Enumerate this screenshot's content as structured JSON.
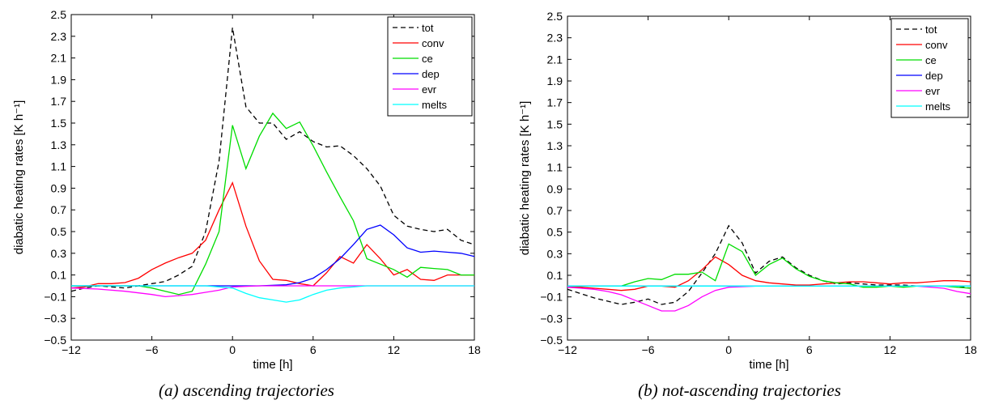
{
  "colors": {
    "tot": "#000000",
    "conv": "#ff0000",
    "ce": "#00dd00",
    "dep": "#0000ff",
    "evr": "#ff00ff",
    "melts": "#00ffff"
  },
  "chart_data": [
    {
      "type": "line",
      "caption": "(a) ascending trajectories",
      "xlabel": "time [h]",
      "ylabel": "diabatic heating rates [K h⁻¹]",
      "xlim": [
        -12,
        18
      ],
      "ylim": [
        -0.5,
        2.5
      ],
      "xticks": [
        -12,
        -6,
        0,
        6,
        12,
        18
      ],
      "yticks": [
        -0.5,
        -0.3,
        -0.1,
        0.1,
        0.3,
        0.5,
        0.7,
        0.9,
        1.1,
        1.3,
        1.5,
        1.7,
        1.9,
        2.1,
        2.3,
        2.5
      ],
      "grid": false,
      "legend_position": "top-right",
      "series": [
        {
          "name": "tot",
          "dash": true,
          "x": [
            -12,
            -11,
            -10,
            -9,
            -8,
            -7,
            -6,
            -5,
            -4,
            -3,
            -2,
            -1,
            0,
            1,
            2,
            3,
            4,
            5,
            6,
            7,
            8,
            9,
            10,
            11,
            12,
            13,
            14,
            15,
            16,
            17,
            18
          ],
          "y": [
            -0.05,
            -0.02,
            0.0,
            -0.01,
            -0.02,
            0.0,
            0.02,
            0.04,
            0.1,
            0.18,
            0.5,
            1.15,
            2.38,
            1.65,
            1.5,
            1.5,
            1.35,
            1.42,
            1.33,
            1.28,
            1.29,
            1.2,
            1.08,
            0.92,
            0.65,
            0.55,
            0.52,
            0.5,
            0.52,
            0.42,
            0.38
          ]
        },
        {
          "name": "conv",
          "x": [
            -12,
            -11,
            -10,
            -9,
            -8,
            -7,
            -6,
            -5,
            -4,
            -3,
            -2,
            -1,
            0,
            1,
            2,
            3,
            4,
            5,
            6,
            7,
            8,
            9,
            10,
            11,
            12,
            13,
            14,
            15,
            16,
            17,
            18
          ],
          "y": [
            -0.02,
            -0.01,
            0.02,
            0.02,
            0.03,
            0.07,
            0.15,
            0.21,
            0.26,
            0.3,
            0.42,
            0.7,
            0.95,
            0.55,
            0.23,
            0.06,
            0.05,
            0.02,
            0.0,
            0.12,
            0.27,
            0.21,
            0.38,
            0.25,
            0.1,
            0.15,
            0.06,
            0.05,
            0.1,
            0.1,
            0.1
          ]
        },
        {
          "name": "ce",
          "x": [
            -12,
            -11,
            -10,
            -9,
            -8,
            -7,
            -6,
            -5,
            -4,
            -3,
            -2,
            -1,
            0,
            1,
            2,
            3,
            4,
            5,
            6,
            7,
            8,
            9,
            10,
            11,
            12,
            13,
            14,
            15,
            16,
            17,
            18
          ],
          "y": [
            0.0,
            0.0,
            0.0,
            0.0,
            0.0,
            0.0,
            -0.02,
            -0.05,
            -0.08,
            -0.05,
            0.2,
            0.5,
            1.48,
            1.08,
            1.38,
            1.59,
            1.45,
            1.51,
            1.29,
            1.05,
            0.82,
            0.6,
            0.25,
            0.2,
            0.15,
            0.08,
            0.17,
            0.16,
            0.15,
            0.1,
            0.1
          ]
        },
        {
          "name": "dep",
          "x": [
            -12,
            -10,
            -8,
            -6,
            -4,
            -2,
            0,
            2,
            4,
            5,
            6,
            7,
            8,
            9,
            10,
            11,
            12,
            13,
            14,
            15,
            16,
            17,
            18
          ],
          "y": [
            0.0,
            0.0,
            0.0,
            0.0,
            0.0,
            0.0,
            0.0,
            0.0,
            0.01,
            0.03,
            0.07,
            0.15,
            0.25,
            0.38,
            0.52,
            0.56,
            0.47,
            0.35,
            0.31,
            0.32,
            0.31,
            0.3,
            0.27
          ]
        },
        {
          "name": "evr",
          "x": [
            -12,
            -10,
            -8,
            -6,
            -5,
            -4,
            -3,
            -2,
            -1,
            0,
            2,
            4,
            6,
            8,
            10,
            12,
            14,
            16,
            18
          ],
          "y": [
            -0.02,
            -0.03,
            -0.05,
            -0.08,
            -0.1,
            -0.09,
            -0.08,
            -0.06,
            -0.04,
            -0.01,
            0.0,
            0.0,
            0.0,
            0.0,
            0.0,
            0.0,
            0.0,
            0.0,
            0.0
          ]
        },
        {
          "name": "melts",
          "x": [
            -12,
            -2,
            -1,
            0,
            1,
            2,
            3,
            4,
            5,
            6,
            7,
            8,
            9,
            10,
            12,
            14,
            16,
            18
          ],
          "y": [
            0.0,
            0.0,
            -0.01,
            -0.02,
            -0.07,
            -0.11,
            -0.13,
            -0.15,
            -0.13,
            -0.08,
            -0.04,
            -0.02,
            -0.01,
            0.0,
            0.0,
            0.0,
            0.0,
            0.0
          ]
        }
      ]
    },
    {
      "type": "line",
      "caption": "(b) not-ascending trajectories",
      "xlabel": "time [h]",
      "ylabel": "diabatic heating rates [K h⁻¹]",
      "xlim": [
        -12,
        18
      ],
      "ylim": [
        -0.5,
        2.5
      ],
      "xticks": [
        -12,
        -6,
        0,
        6,
        12,
        18
      ],
      "yticks": [
        -0.5,
        -0.3,
        -0.1,
        0.1,
        0.3,
        0.5,
        0.7,
        0.9,
        1.1,
        1.3,
        1.5,
        1.7,
        1.9,
        2.1,
        2.3,
        2.5
      ],
      "grid": false,
      "legend_position": "top-right",
      "series": [
        {
          "name": "tot",
          "dash": true,
          "x": [
            -12,
            -11,
            -10,
            -9,
            -8,
            -7,
            -6,
            -5,
            -4,
            -3,
            -2,
            -1,
            0,
            1,
            2,
            3,
            4,
            5,
            6,
            7,
            8,
            9,
            10,
            11,
            12,
            13,
            14,
            15,
            16,
            17,
            18
          ],
          "y": [
            -0.03,
            -0.07,
            -0.11,
            -0.14,
            -0.17,
            -0.15,
            -0.12,
            -0.17,
            -0.15,
            -0.05,
            0.12,
            0.3,
            0.56,
            0.4,
            0.12,
            0.23,
            0.27,
            0.17,
            0.1,
            0.05,
            0.02,
            0.03,
            0.02,
            0.01,
            0.01,
            0.01,
            0.0,
            0.0,
            0.0,
            0.0,
            -0.02
          ]
        },
        {
          "name": "conv",
          "x": [
            -12,
            -11,
            -10,
            -9,
            -8,
            -7,
            -6,
            -5,
            -4,
            -3,
            -2,
            -1,
            0,
            1,
            2,
            3,
            4,
            5,
            6,
            7,
            8,
            9,
            10,
            11,
            12,
            13,
            14,
            15,
            16,
            17,
            18
          ],
          "y": [
            -0.01,
            -0.01,
            -0.02,
            -0.03,
            -0.04,
            -0.03,
            0.0,
            0.0,
            -0.01,
            0.05,
            0.15,
            0.27,
            0.2,
            0.1,
            0.05,
            0.03,
            0.02,
            0.01,
            0.01,
            0.02,
            0.03,
            0.04,
            0.04,
            0.03,
            0.02,
            0.03,
            0.03,
            0.04,
            0.05,
            0.05,
            0.04
          ]
        },
        {
          "name": "ce",
          "x": [
            -12,
            -11,
            -10,
            -9,
            -8,
            -7,
            -6,
            -5,
            -4,
            -3,
            -2,
            -1,
            0,
            1,
            2,
            3,
            4,
            5,
            6,
            7,
            8,
            9,
            10,
            11,
            12,
            13,
            14,
            15,
            16,
            17,
            18
          ],
          "y": [
            0.0,
            0.0,
            0.0,
            0.0,
            0.0,
            0.04,
            0.07,
            0.06,
            0.11,
            0.11,
            0.13,
            0.05,
            0.39,
            0.32,
            0.1,
            0.2,
            0.26,
            0.16,
            0.09,
            0.05,
            0.03,
            0.02,
            -0.01,
            -0.01,
            0.0,
            -0.01,
            0.0,
            0.0,
            0.0,
            -0.01,
            -0.02
          ]
        },
        {
          "name": "dep",
          "x": [
            -12,
            -6,
            0,
            6,
            12,
            18
          ],
          "y": [
            0.0,
            0.0,
            0.0,
            0.0,
            0.0,
            0.0
          ]
        },
        {
          "name": "evr",
          "x": [
            -12,
            -11,
            -10,
            -9,
            -8,
            -7,
            -6,
            -5,
            -4,
            -3,
            -2,
            -1,
            0,
            2,
            4,
            6,
            8,
            10,
            12,
            14,
            16,
            17,
            18
          ],
          "y": [
            -0.01,
            -0.02,
            -0.03,
            -0.05,
            -0.08,
            -0.13,
            -0.18,
            -0.23,
            -0.23,
            -0.18,
            -0.1,
            -0.04,
            -0.01,
            0.0,
            0.0,
            0.0,
            0.0,
            0.0,
            0.0,
            0.0,
            -0.02,
            -0.05,
            -0.07
          ]
        },
        {
          "name": "melts",
          "x": [
            -12,
            -6,
            0,
            6,
            12,
            18
          ],
          "y": [
            0.0,
            0.0,
            0.0,
            0.0,
            0.0,
            0.0
          ]
        }
      ]
    }
  ]
}
